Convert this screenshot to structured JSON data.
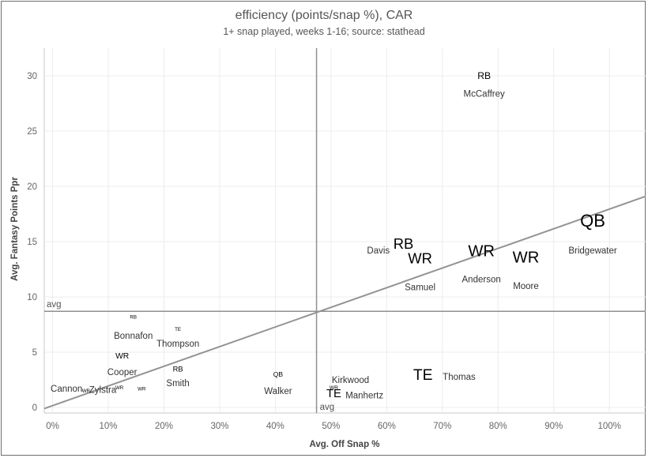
{
  "chart_data": {
    "type": "scatter",
    "title": "efficiency (points/snap %), CAR",
    "subtitle": "1+ snap played, weeks 1-16; source: stathead",
    "xlabel": "Avg. Off Snap %",
    "ylabel": "Avg. Fantasy Points Ppr",
    "xlim": [
      -1.5,
      106.5
    ],
    "ylim": [
      -0.5,
      32.5
    ],
    "x_ticks": [
      {
        "value": 0,
        "label": "0%"
      },
      {
        "value": 10,
        "label": "10%"
      },
      {
        "value": 20,
        "label": "20%"
      },
      {
        "value": 30,
        "label": "30%"
      },
      {
        "value": 40,
        "label": "40%"
      },
      {
        "value": 50,
        "label": "50%"
      },
      {
        "value": 60,
        "label": "60%"
      },
      {
        "value": 70,
        "label": "70%"
      },
      {
        "value": 80,
        "label": "80%"
      },
      {
        "value": 90,
        "label": "90%"
      },
      {
        "value": 100,
        "label": "100%"
      }
    ],
    "y_ticks": [
      {
        "value": 0,
        "label": "0"
      },
      {
        "value": 5,
        "label": "5"
      },
      {
        "value": 10,
        "label": "10"
      },
      {
        "value": 15,
        "label": "15"
      },
      {
        "value": 20,
        "label": "20"
      },
      {
        "value": 25,
        "label": "25"
      },
      {
        "value": 30,
        "label": "30"
      }
    ],
    "grid": true,
    "reference_lines": {
      "x_avg": 47.4,
      "y_avg": 8.7,
      "x_avg_label": "avg",
      "y_avg_label": "avg"
    },
    "trend_line": {
      "from": [
        -1.5,
        -0.1
      ],
      "to": [
        106.5,
        19.1
      ]
    },
    "points": [
      {
        "name": "McCaffrey",
        "position": "RB",
        "x": 77.5,
        "y": 30.0,
        "size": 0.45
      },
      {
        "name": "Bridgewater",
        "position": "QB",
        "x": 97.0,
        "y": 16.9,
        "size": 1.0
      },
      {
        "name": "Davis",
        "position": "RB",
        "x": 63.0,
        "y": 14.8,
        "size": 0.8
      },
      {
        "name": "Samuel",
        "position": "WR",
        "x": 66.0,
        "y": 13.5,
        "size": 0.8
      },
      {
        "name": "Anderson",
        "position": "WR",
        "x": 77.0,
        "y": 14.2,
        "size": 0.9
      },
      {
        "name": "Moore",
        "position": "WR",
        "x": 85.0,
        "y": 13.6,
        "size": 0.9
      },
      {
        "name": "Bonnafon",
        "position": "RB",
        "x": 14.5,
        "y": 8.2,
        "size": 0.12
      },
      {
        "name": "Thompson",
        "position": "TE",
        "x": 22.5,
        "y": 7.1,
        "size": 0.12
      },
      {
        "name": "Cooper",
        "position": "WR",
        "x": 12.5,
        "y": 4.7,
        "size": 0.35
      },
      {
        "name": "Smith",
        "position": "RB",
        "x": 22.5,
        "y": 3.5,
        "size": 0.3
      },
      {
        "name": "Cannon",
        "position": "WR",
        "x": 6.0,
        "y": 1.5,
        "size": 0.12
      },
      {
        "name": "Zylstra",
        "position": "WR",
        "x": 12.0,
        "y": 1.8,
        "size": 0.12
      },
      {
        "name": "Cannon-Zylstra",
        "position": "WR",
        "x": 16.0,
        "y": 1.7,
        "size": 0.12
      },
      {
        "name": "Walker",
        "position": "QB",
        "x": 40.5,
        "y": 3.0,
        "size": 0.25
      },
      {
        "name": "Kirkwood",
        "position": "WR",
        "x": 50.5,
        "y": 1.8,
        "size": 0.15
      },
      {
        "name": "Manhertz",
        "position": "TE",
        "x": 50.5,
        "y": 1.3,
        "size": 0.6
      },
      {
        "name": "Thomas",
        "position": "TE",
        "x": 66.5,
        "y": 3.0,
        "size": 0.85
      }
    ],
    "name_labels": [
      {
        "text": "McCaffrey",
        "x": 77.5,
        "y": 28.4
      },
      {
        "text": "Bridgewater",
        "x": 97.0,
        "y": 14.2
      },
      {
        "text": "Davis",
        "x": 58.5,
        "y": 14.2
      },
      {
        "text": "Samuel",
        "x": 66.0,
        "y": 10.9
      },
      {
        "text": "Anderson",
        "x": 77.0,
        "y": 11.6
      },
      {
        "text": "Moore",
        "x": 85.0,
        "y": 11.0
      },
      {
        "text": "Bonnafon",
        "x": 14.5,
        "y": 6.5
      },
      {
        "text": "Thompson",
        "x": 22.5,
        "y": 5.8
      },
      {
        "text": "Cooper",
        "x": 12.5,
        "y": 3.2
      },
      {
        "text": "Smith",
        "x": 22.5,
        "y": 2.2
      },
      {
        "text": "Cannon",
        "x": 2.5,
        "y": 1.7
      },
      {
        "text": "Zylstra",
        "x": 9.0,
        "y": 1.6
      },
      {
        "text": "Walker",
        "x": 40.5,
        "y": 1.5
      },
      {
        "text": "Kirkwood",
        "x": 53.5,
        "y": 2.5
      },
      {
        "text": "Manhertz",
        "x": 56.0,
        "y": 1.1
      },
      {
        "text": "Thomas",
        "x": 73.0,
        "y": 2.8
      }
    ]
  }
}
